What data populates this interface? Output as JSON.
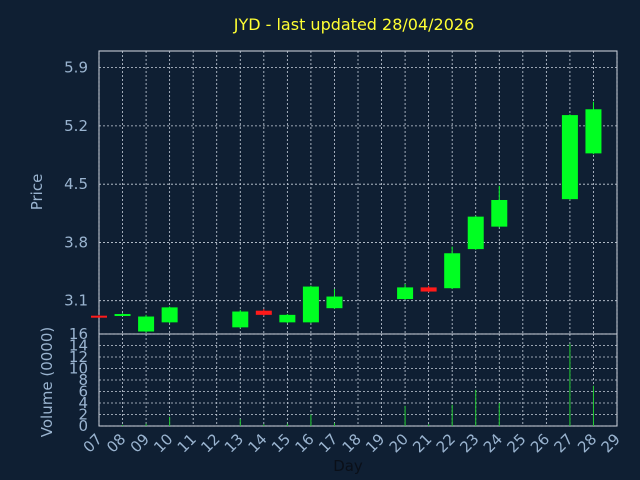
{
  "chart_data": {
    "type": "candlestick",
    "title": "JYD - last updated 28/04/2026",
    "xlabel": "Day",
    "price_panel": {
      "ylabel": "Price",
      "yticks": [
        "3.1",
        "3.8",
        "4.5",
        "5.2",
        "5.9"
      ],
      "ylim": [
        2.7,
        6.1
      ]
    },
    "volume_panel": {
      "ylabel": "Volume (0000)",
      "yticks": [
        "0",
        "2",
        "4",
        "6",
        "8",
        "10",
        "12",
        "14",
        "16"
      ],
      "ylim": [
        0,
        16
      ]
    },
    "x_ticks": [
      "07",
      "08",
      "09",
      "10",
      "11",
      "12",
      "13",
      "14",
      "15",
      "16",
      "17",
      "18",
      "19",
      "20",
      "21",
      "22",
      "23",
      "24",
      "25",
      "26",
      "27",
      "28",
      "29"
    ],
    "candles": [
      {
        "day": 7,
        "open": 2.92,
        "close": 2.92,
        "high": 2.93,
        "low": 2.91,
        "volume": 0,
        "direction": "down"
      },
      {
        "day": 8,
        "open": 2.93,
        "close": 2.94,
        "high": 2.95,
        "low": 2.92,
        "volume": 0.2,
        "direction": "up"
      },
      {
        "day": 9,
        "open": 2.73,
        "close": 2.91,
        "high": 2.93,
        "low": 2.72,
        "volume": 0.4,
        "direction": "up"
      },
      {
        "day": 10,
        "open": 2.84,
        "close": 3.02,
        "high": 3.03,
        "low": 2.83,
        "volume": 1.6,
        "direction": "up"
      },
      {
        "day": 13,
        "open": 2.78,
        "close": 2.97,
        "high": 2.99,
        "low": 2.77,
        "volume": 1.2,
        "direction": "up"
      },
      {
        "day": 14,
        "open": 2.98,
        "close": 2.93,
        "high": 3.0,
        "low": 2.92,
        "volume": 0.3,
        "direction": "down"
      },
      {
        "day": 15,
        "open": 2.84,
        "close": 2.93,
        "high": 2.94,
        "low": 2.83,
        "volume": 0.4,
        "direction": "up"
      },
      {
        "day": 16,
        "open": 2.84,
        "close": 3.27,
        "high": 3.28,
        "low": 2.83,
        "volume": 2.0,
        "direction": "up"
      },
      {
        "day": 17,
        "open": 3.01,
        "close": 3.15,
        "high": 3.24,
        "low": 3.0,
        "volume": 0.5,
        "direction": "up"
      },
      {
        "day": 20,
        "open": 3.12,
        "close": 3.26,
        "high": 3.3,
        "low": 3.11,
        "volume": 3.5,
        "direction": "up"
      },
      {
        "day": 21,
        "open": 3.26,
        "close": 3.21,
        "high": 3.28,
        "low": 3.2,
        "volume": 0.3,
        "direction": "down"
      },
      {
        "day": 22,
        "open": 3.25,
        "close": 3.67,
        "high": 3.75,
        "low": 3.24,
        "volume": 3.7,
        "direction": "up"
      },
      {
        "day": 23,
        "open": 3.72,
        "close": 4.11,
        "high": 4.12,
        "low": 3.71,
        "volume": 6.3,
        "direction": "up"
      },
      {
        "day": 24,
        "open": 3.99,
        "close": 4.31,
        "high": 4.48,
        "low": 3.98,
        "volume": 4.0,
        "direction": "up"
      },
      {
        "day": 27,
        "open": 4.32,
        "close": 5.33,
        "high": 5.34,
        "low": 4.31,
        "volume": 14.3,
        "direction": "up"
      },
      {
        "day": 28,
        "open": 4.87,
        "close": 5.4,
        "high": 5.49,
        "low": 4.86,
        "volume": 7.0,
        "direction": "up"
      }
    ],
    "colors": {
      "up": "#00ff22",
      "down": "#ff1a1a",
      "volume": "#22cc33",
      "background": "#0f1f33",
      "title": "#ffff33",
      "labels": "#9ab4d0"
    },
    "grid": true
  }
}
